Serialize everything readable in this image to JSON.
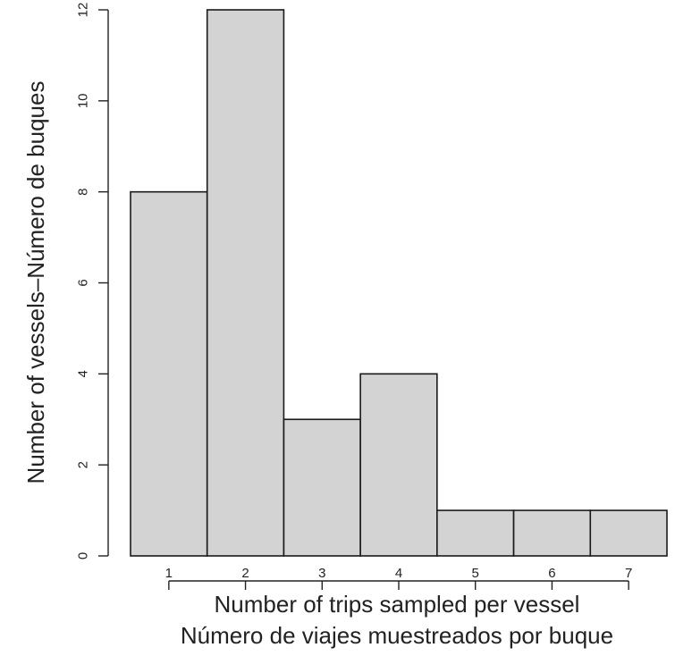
{
  "chart_data": {
    "type": "bar",
    "categories": [
      "1",
      "2",
      "3",
      "4",
      "5",
      "6",
      "7"
    ],
    "values": [
      8,
      12,
      3,
      4,
      1,
      1,
      1
    ],
    "title": "",
    "xlabel_lines": [
      "Number of trips sampled per vessel",
      "Número de viajes muestreados por buque"
    ],
    "ylabel": "Number of vessels–Número de buques",
    "ylim": [
      0,
      12
    ],
    "yticks": [
      0,
      2,
      4,
      6,
      8,
      10,
      12
    ],
    "grid": false,
    "legend": "none",
    "colors": {
      "bar_fill": "#d3d3d3",
      "bar_stroke": "#1a1a1a",
      "axis": "#222222"
    }
  }
}
